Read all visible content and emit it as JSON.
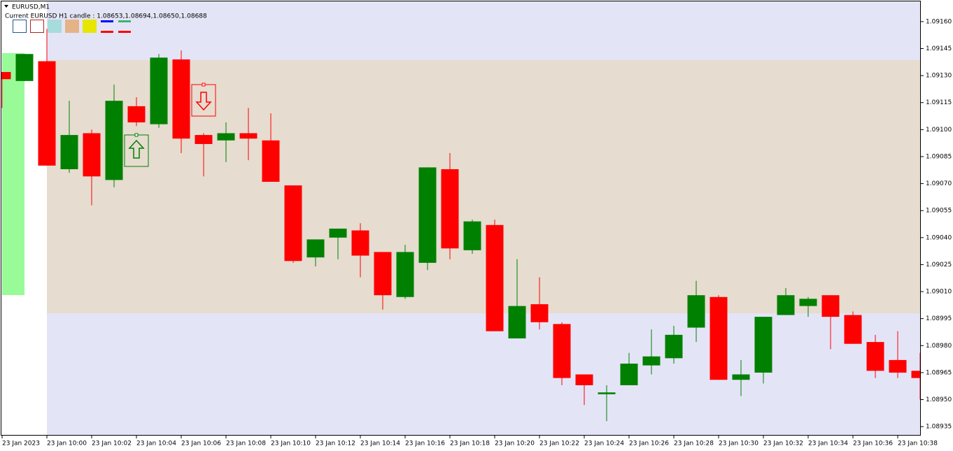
{
  "chart_data": {
    "type": "candlestick",
    "title": "EURUSD,M1",
    "subtitle": "Current EURUSD H1 candle : 1.08653,1.08694,1.08650,1.08688",
    "categories": [
      "23 Jan 2023",
      null,
      "23 Jan 10:00",
      null,
      "23 Jan 10:02",
      null,
      "23 Jan 10:04",
      null,
      "23 Jan 10:06",
      null,
      "23 Jan 10:08",
      null,
      "23 Jan 10:10",
      null,
      "23 Jan 10:12",
      null,
      "23 Jan 10:14",
      null,
      "23 Jan 10:16",
      null,
      "23 Jan 10:18",
      null,
      "23 Jan 10:20",
      null,
      "23 Jan 10:22",
      null,
      "23 Jan 10:24",
      null,
      "23 Jan 10:26",
      null,
      "23 Jan 10:28",
      null,
      "23 Jan 10:30",
      null,
      "23 Jan 10:32",
      null,
      "23 Jan 10:34",
      null,
      "23 Jan 10:36",
      null,
      "23 Jan 10:38",
      null
    ],
    "open": [
      1.09132,
      1.09127,
      1.09138,
      1.09078,
      1.09098,
      1.09072,
      1.09113,
      1.09103,
      1.09139,
      1.09097,
      1.09094,
      1.09098,
      1.09094,
      1.09069,
      1.09029,
      1.0904,
      1.09044,
      1.09032,
      1.09007,
      1.09026,
      1.09078,
      1.09033,
      1.09047,
      1.08984,
      1.09003,
      1.08992,
      1.08964,
      1.08953,
      1.08958,
      1.08969,
      1.08973,
      1.0899,
      1.09007,
      1.08961,
      1.08965,
      1.08997,
      1.09002,
      1.09008,
      1.08997,
      1.08982,
      1.08972,
      1.08966
    ],
    "high": [
      1.09132,
      1.09142,
      1.09156,
      1.09116,
      1.091,
      1.09125,
      1.09118,
      1.09142,
      1.09144,
      1.09098,
      1.09104,
      1.09112,
      1.09109,
      1.09069,
      1.09039,
      1.09045,
      1.09048,
      1.09032,
      1.09036,
      1.09079,
      1.09087,
      1.0905,
      1.0905,
      1.09028,
      1.09018,
      1.08993,
      1.08964,
      1.08958,
      1.08976,
      1.08989,
      1.08991,
      1.09016,
      1.09008,
      1.08972,
      1.08996,
      1.09012,
      1.09007,
      1.09008,
      1.08999,
      1.08986,
      1.08988,
      1.08976
    ],
    "low": [
      1.09112,
      1.09127,
      1.0908,
      1.09076,
      1.09058,
      1.09068,
      1.09102,
      1.09101,
      1.09087,
      1.09074,
      1.09082,
      1.09083,
      1.09071,
      1.09026,
      1.09024,
      1.09028,
      1.09018,
      1.09,
      1.09006,
      1.09022,
      1.09028,
      1.09031,
      1.08988,
      1.08984,
      1.08989,
      1.08958,
      1.08947,
      1.08938,
      1.08958,
      1.08964,
      1.0897,
      1.08982,
      1.08961,
      1.08952,
      1.08959,
      1.08997,
      1.08996,
      1.08978,
      1.08981,
      1.08962,
      1.08962,
      1.0895
    ],
    "close": [
      1.09128,
      1.09142,
      1.0908,
      1.09097,
      1.09074,
      1.09116,
      1.09104,
      1.0914,
      1.09095,
      1.09092,
      1.09098,
      1.09095,
      1.09071,
      1.09027,
      1.09039,
      1.09045,
      1.0903,
      1.09008,
      1.09032,
      1.09079,
      1.09034,
      1.09049,
      1.08988,
      1.09002,
      1.08993,
      1.08962,
      1.08958,
      1.08954,
      1.0897,
      1.08974,
      1.08986,
      1.09008,
      1.08961,
      1.08964,
      1.08996,
      1.09008,
      1.09006,
      1.08996,
      1.08981,
      1.08966,
      1.08965,
      1.08962
    ],
    "up_color": "#008000",
    "down_color": "#ff0000",
    "ylim": [
      1.0893,
      1.09172
    ],
    "yticks": [
      {
        "value": 1.0916,
        "label": "1.09160"
      },
      1.09145,
      {
        "value": 1.0913,
        "label": "1.09130"
      },
      1.09115,
      {
        "value": 1.091,
        "label": "1.09100"
      },
      1.09085,
      {
        "value": 1.0907,
        "label": "1.09070"
      },
      1.09055,
      {
        "value": 1.0904,
        "label": "1.09040"
      },
      1.09025,
      {
        "value": 1.0901,
        "label": "1.09010"
      },
      1.08995,
      {
        "value": 1.0898,
        "label": "1.08980"
      },
      1.08965,
      {
        "value": 1.0895,
        "label": "1.08950"
      },
      1.08935
    ]
  }
}
